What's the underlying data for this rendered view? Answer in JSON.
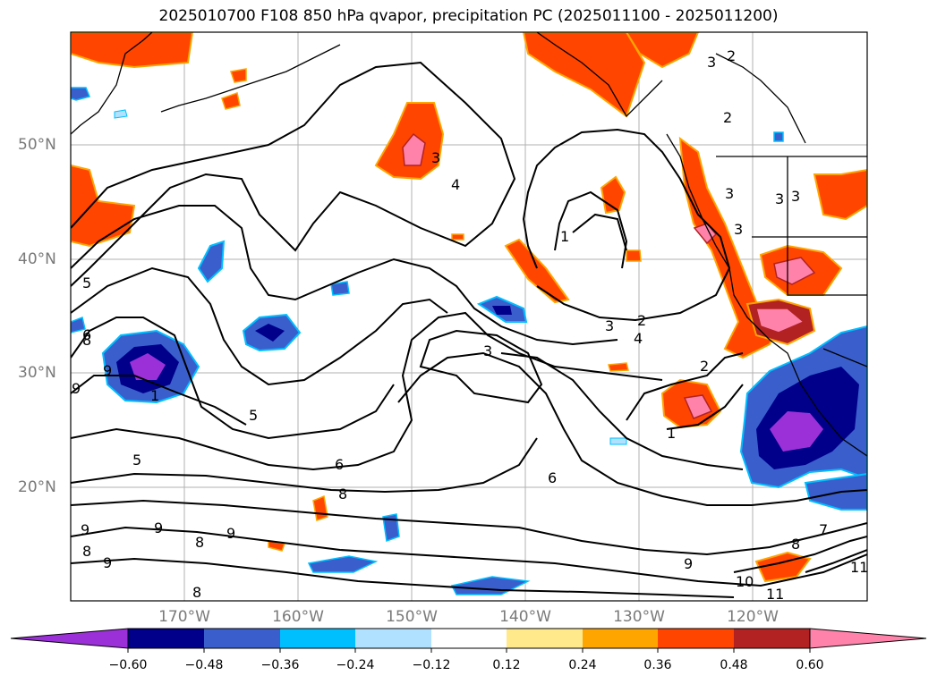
{
  "title": "2025010700 F108 850 hPa qvapor, precipitation PC (2025011100 - 2025011200)",
  "lat_labels": [
    "50°N",
    "40°N",
    "30°N",
    "20°N"
  ],
  "lon_labels": [
    "170°W",
    "160°W",
    "150°W",
    "140°W",
    "130°W",
    "120°W"
  ],
  "colorbar": {
    "ticks": [
      "−0.60",
      "−0.48",
      "−0.36",
      "−0.24",
      "−0.12",
      "0.12",
      "0.24",
      "0.36",
      "0.48",
      "0.60"
    ],
    "colors": [
      "#9b30d8",
      "#00008b",
      "#3a5fcd",
      "#00bfff",
      "#b0e2ff",
      "#ffffff",
      "#ffe98a",
      "#ffa500",
      "#ff4500",
      "#b22222",
      "#ff82ab"
    ]
  },
  "contour_labels": [
    "5",
    "6",
    "8",
    "9",
    "9",
    "1",
    "5",
    "5",
    "6",
    "8",
    "9",
    "9",
    "8",
    "9",
    "8",
    "8",
    "9",
    "3",
    "4",
    "3",
    "1",
    "2",
    "3",
    "4",
    "3",
    "2",
    "1",
    "6",
    "9",
    "8",
    "10",
    "11",
    "11",
    "7",
    "3",
    "3",
    "3",
    "3",
    "2",
    "2"
  ]
}
